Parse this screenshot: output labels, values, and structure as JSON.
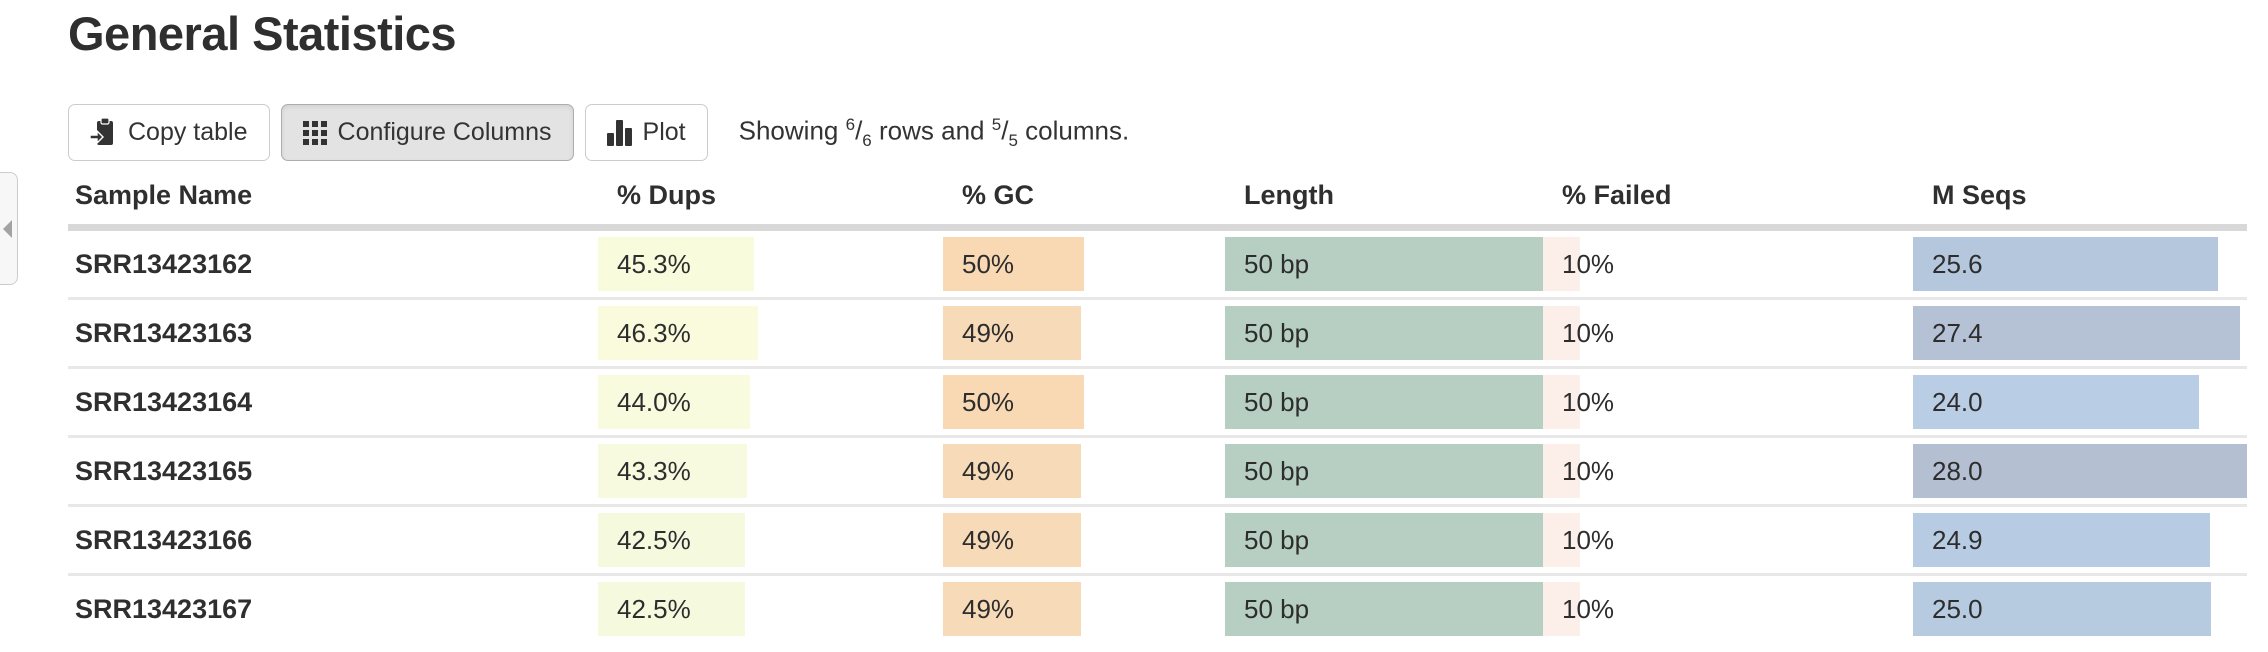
{
  "page": {
    "title": "General Statistics"
  },
  "side_tab": {
    "icon": "chevron-left-icon"
  },
  "toolbar": {
    "buttons": [
      {
        "label": "Copy table",
        "icon": "clipboard-copy-icon",
        "active": false
      },
      {
        "label": "Configure Columns",
        "icon": "grid-icon",
        "active": true
      },
      {
        "label": "Plot",
        "icon": "bar-chart-icon",
        "active": false
      }
    ],
    "showing": {
      "prefix": "Showing",
      "rows_shown": "6",
      "rows_total": "6",
      "mid": "rows and",
      "cols_shown": "5",
      "cols_total": "5",
      "suffix": "columns."
    }
  },
  "colors": {
    "dups_bar": "#f8fbdd",
    "gc_bar": "#f7d9b5",
    "length_bar": "#b6cfc2",
    "failed_bar": "#fcefe9",
    "mseqs_bar": "#b6c9df",
    "header_rule": "#d8d8d8",
    "row_rule": "#e8e8e8",
    "active_button_bg": "#e3e3e3"
  },
  "table": {
    "columns": [
      "Sample Name",
      "% Dups",
      "% GC",
      "Length",
      "% Failed",
      "M Seqs"
    ],
    "rows": [
      {
        "sample": "SRR13423162",
        "cells": [
          {
            "key": "dups",
            "text": "45.3%",
            "bar_pct": 45.3,
            "bar_color": "#f9fbdd"
          },
          {
            "key": "gc",
            "text": "50%",
            "bar_pct": 50,
            "bar_color": "#f8d9b4"
          },
          {
            "key": "length",
            "text": "50 bp",
            "bar_pct": 100,
            "bar_color": "#b6cfc2"
          },
          {
            "key": "failed",
            "text": "10%",
            "bar_pct": 10,
            "bar_color": "#fcefe9"
          },
          {
            "key": "mseqs",
            "text": "25.6",
            "bar_pct": 91.4,
            "bar_color": "#b4c7dd"
          }
        ]
      },
      {
        "sample": "SRR13423163",
        "cells": [
          {
            "key": "dups",
            "text": "46.3%",
            "bar_pct": 46.3,
            "bar_color": "#fafbdc"
          },
          {
            "key": "gc",
            "text": "49%",
            "bar_pct": 49,
            "bar_color": "#f7dab8"
          },
          {
            "key": "length",
            "text": "50 bp",
            "bar_pct": 100,
            "bar_color": "#b6cfc2"
          },
          {
            "key": "failed",
            "text": "10%",
            "bar_pct": 10,
            "bar_color": "#fcefe9"
          },
          {
            "key": "mseqs",
            "text": "27.4",
            "bar_pct": 97.9,
            "bar_color": "#b5c2d6"
          }
        ]
      },
      {
        "sample": "SRR13423164",
        "cells": [
          {
            "key": "dups",
            "text": "44.0%",
            "bar_pct": 44.0,
            "bar_color": "#f8fbde"
          },
          {
            "key": "gc",
            "text": "50%",
            "bar_pct": 50,
            "bar_color": "#f8d9b4"
          },
          {
            "key": "length",
            "text": "50 bp",
            "bar_pct": 100,
            "bar_color": "#b6cfc2"
          },
          {
            "key": "failed",
            "text": "10%",
            "bar_pct": 10,
            "bar_color": "#fcefe9"
          },
          {
            "key": "mseqs",
            "text": "24.0",
            "bar_pct": 85.7,
            "bar_color": "#b9cde4"
          }
        ]
      },
      {
        "sample": "SRR13423165",
        "cells": [
          {
            "key": "dups",
            "text": "43.3%",
            "bar_pct": 43.3,
            "bar_color": "#f7fade"
          },
          {
            "key": "gc",
            "text": "49%",
            "bar_pct": 49,
            "bar_color": "#f7dab8"
          },
          {
            "key": "length",
            "text": "50 bp",
            "bar_pct": 100,
            "bar_color": "#b6cfc2"
          },
          {
            "key": "failed",
            "text": "10%",
            "bar_pct": 10,
            "bar_color": "#fcefe9"
          },
          {
            "key": "mseqs",
            "text": "28.0",
            "bar_pct": 100,
            "bar_color": "#b4bfd2"
          }
        ]
      },
      {
        "sample": "SRR13423166",
        "cells": [
          {
            "key": "dups",
            "text": "42.5%",
            "bar_pct": 42.5,
            "bar_color": "#f5fade"
          },
          {
            "key": "gc",
            "text": "49%",
            "bar_pct": 49,
            "bar_color": "#f7dab8"
          },
          {
            "key": "length",
            "text": "50 bp",
            "bar_pct": 100,
            "bar_color": "#b6cfc2"
          },
          {
            "key": "failed",
            "text": "10%",
            "bar_pct": 10,
            "bar_color": "#fcefe9"
          },
          {
            "key": "mseqs",
            "text": "24.9",
            "bar_pct": 88.9,
            "bar_color": "#b7cbe2"
          }
        ]
      },
      {
        "sample": "SRR13423167",
        "cells": [
          {
            "key": "dups",
            "text": "42.5%",
            "bar_pct": 42.5,
            "bar_color": "#f5fade"
          },
          {
            "key": "gc",
            "text": "49%",
            "bar_pct": 49,
            "bar_color": "#f7dab8"
          },
          {
            "key": "length",
            "text": "50 bp",
            "bar_pct": 100,
            "bar_color": "#b6cfc2"
          },
          {
            "key": "failed",
            "text": "10%",
            "bar_pct": 10,
            "bar_color": "#fcefe9"
          },
          {
            "key": "mseqs",
            "text": "25.0",
            "bar_pct": 89.3,
            "bar_color": "#b6cae0"
          }
        ]
      }
    ]
  }
}
